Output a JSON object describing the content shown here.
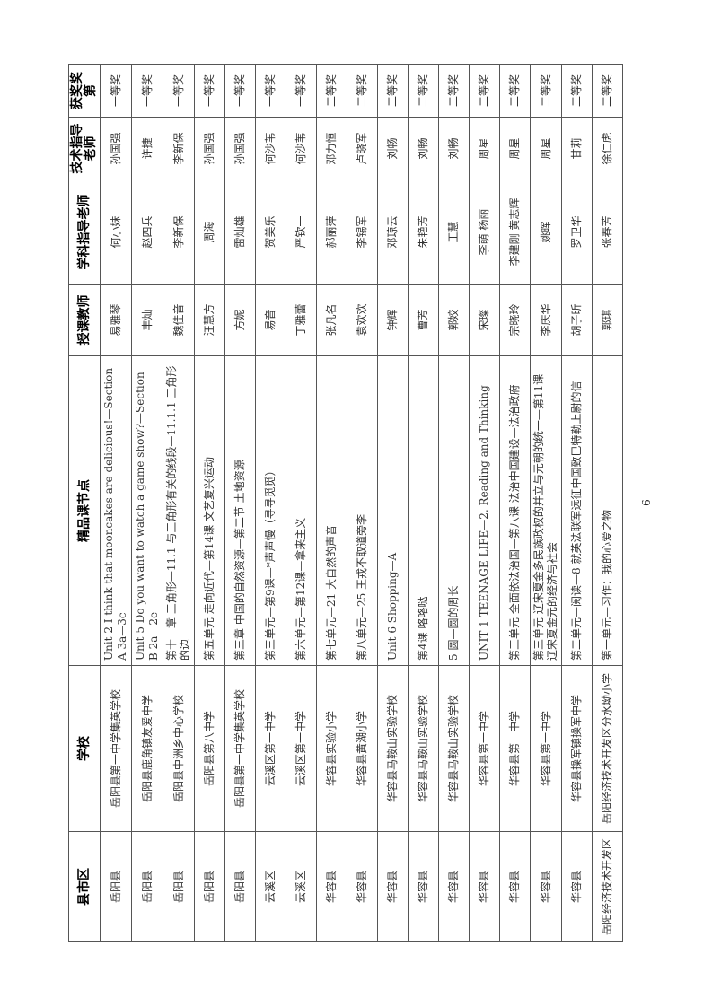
{
  "page_number": "6",
  "table": {
    "headers": [
      "县市区",
      "学校",
      "精品课节点",
      "授课教师",
      "学科指导老师",
      "技术指导老师",
      "获奖奖第"
    ],
    "rows": [
      [
        "岳阳县",
        "岳阳县第一中学集英学校",
        "Unit 2 I think that mooncakes are delicious!—Section A 3a—3c",
        "易雅琴",
        "何小妹",
        "孙国强",
        "一等奖"
      ],
      [
        "岳阳县",
        "岳阳县鹿角镇友爱中学",
        "Unit 5 Do you want to watch a game show?—Section B 2a—2e",
        "丰灿",
        "赵四兵",
        "许捷",
        "一等奖"
      ],
      [
        "岳阳县",
        "岳阳县中洲乡中心学校",
        "第十一章 三角形—11.1 与三角形有关的线段—11.1.1 三角形的边",
        "魏佳音",
        "李新保",
        "李新保",
        "一等奖"
      ],
      [
        "岳阳县",
        "岳阳县第八中学",
        "第五单元 走向近代—第14课 文艺复兴运动",
        "汪慧方",
        "周海",
        "孙国强",
        "一等奖"
      ],
      [
        "岳阳县",
        "岳阳县第一中学集英学校",
        "第三章 中国的自然资源—第二节 土地资源",
        "方妮",
        "雷灿雄",
        "孙国强",
        "一等奖"
      ],
      [
        "云溪区",
        "云溪区第一中学",
        "第三单元—第9课—*声声慢（寻寻觅觅）",
        "易音",
        "贺美乐",
        "何沙苇",
        "一等奖"
      ],
      [
        "云溪区",
        "云溪区第一中学",
        "第六单元—第12课—拿来主义",
        "丁雅蕾",
        "严钦一",
        "何沙苇",
        "一等奖"
      ],
      [
        "华容县",
        "华容县实验小学",
        "第七单元—21 大自然的声音",
        "张凡名",
        "郝丽萍",
        "邓力恒",
        "二等奖"
      ],
      [
        "华容县",
        "华容县黄湖小学",
        "第八单元—25 王戎不取道旁李",
        "袁欢欢",
        "李锡军",
        "卢晓军",
        "二等奖"
      ],
      [
        "华容县",
        "华容县马鞍山实验学校",
        "Unit 6 Shopping—A",
        "钟辉",
        "邓琼云",
        "刘畅",
        "二等奖"
      ],
      [
        "华容县",
        "华容县马鞍山实验学校",
        "第4课 咯咯哒",
        "曹芳",
        "朱艳芳",
        "刘畅",
        "二等奖"
      ],
      [
        "华容县",
        "华容县马鞍山实验学校",
        "5 圆—圆的周长",
        "郭姣",
        "王慧",
        "刘畅",
        "二等奖"
      ],
      [
        "华容县",
        "华容县第一中学",
        "UNIT 1 TEENAGE LIFE—2. Reading and Thinking",
        "宋璨",
        "李萌  杨丽",
        "周星",
        "二等奖"
      ],
      [
        "华容县",
        "华容县第一中学",
        "第三单元 全面依法治国—第八课 法治中国建设—法治政府",
        "宗晓玲",
        "李建刚  黄志辉",
        "周星",
        "二等奖"
      ],
      [
        "华容县",
        "华容县第一中学",
        "第三单元 辽宋夏金多民族政权的并立与元朝的统一—第11课 辽宋夏金元的经济与社会",
        "李庆华",
        "姚晖",
        "周星",
        "二等奖"
      ],
      [
        "华容县",
        "华容县操军镇操军中学",
        "第二单元—阅读—8 就英法联军远征中国致巴特勒上尉的信",
        "胡子昕",
        "罗卫华",
        "甘莉",
        "二等奖"
      ],
      [
        "岳阳经济技术开发区",
        "岳阳经济技术开发区分水坳小学",
        "第一单元—习作：我的心爱之物",
        "郭琪",
        "张春芳",
        "徐仁虎",
        "二等奖"
      ]
    ]
  }
}
